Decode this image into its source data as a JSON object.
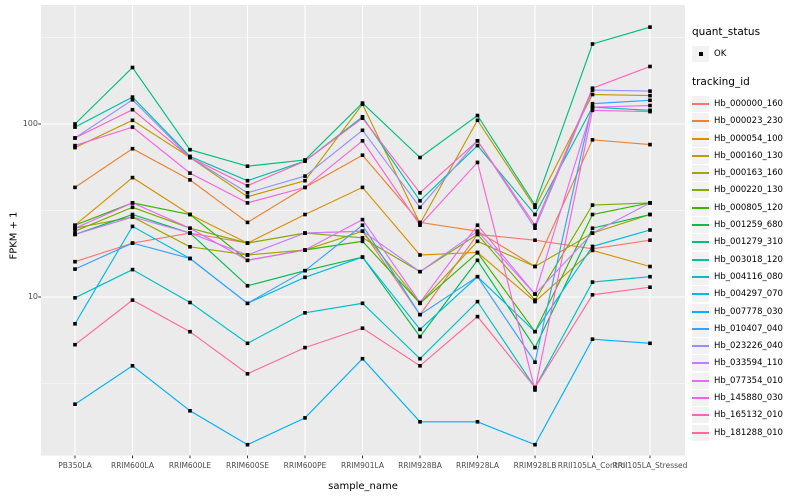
{
  "figure": {
    "background": "#FFFFFF",
    "panel_background": "#EBEBEB",
    "grid_color": "#FFFFFF",
    "tick_color": "#333333",
    "axis_text_color": "#4D4D4D",
    "marker_color": "#000000"
  },
  "y_axis": {
    "title": "FPKM + 1",
    "tick_labels": [
      "100",
      "10"
    ],
    "tick_values": [
      100,
      10
    ]
  },
  "x_axis": {
    "title": "sample_name",
    "categories": [
      "PB350LA",
      "RRIM600LA",
      "RRIM600LE",
      "RRIM600SE",
      "RRIM600PE",
      "RRIM901LA",
      "RRIM928BA",
      "RRIM928LA",
      "RRIM928LB",
      "RRII105LA_Control",
      "RRII105LA_Stressed"
    ]
  },
  "legend": {
    "quant_status": {
      "title": "quant_status",
      "items": [
        {
          "label": "OK",
          "marker": "black-square-point"
        }
      ]
    },
    "tracking_id": {
      "title": "tracking_id"
    }
  },
  "chart_data": {
    "type": "line",
    "title": "",
    "xlabel": "sample_name",
    "ylabel": "FPKM + 1",
    "y_scale": "log10",
    "ylim": [
      1.2,
      480
    ],
    "grid": true,
    "legend_position": "right",
    "marker": {
      "shape": "square",
      "color": "#000000",
      "label": "OK"
    },
    "categories": [
      "PB350LA",
      "RRIM600LA",
      "RRIM600LE",
      "RRIM600SE",
      "RRIM600PE",
      "RRIM901LA",
      "RRIM928BA",
      "RRIM928LA",
      "RRIM928LB",
      "RRII105LA_Control",
      "RRII105LA_Stressed"
    ],
    "series": [
      {
        "name": "Hb_000000_160",
        "color": "#F8766D",
        "values": [
          16,
          20.5,
          23.4,
          20.5,
          23.4,
          24,
          7.9,
          23,
          21.3,
          19,
          21.3
        ]
      },
      {
        "name": "Hb_000023_230",
        "color": "#EA8331",
        "values": [
          43,
          72,
          47.5,
          27,
          43,
          66,
          27,
          24,
          15,
          81,
          76
        ]
      },
      {
        "name": "Hb_000054_100",
        "color": "#D89000",
        "values": [
          26,
          49,
          30,
          20.5,
          30,
          43,
          17.5,
          18.1,
          9.4,
          18.6,
          15
        ]
      },
      {
        "name": "Hb_000160_130",
        "color": "#C09B00",
        "values": [
          73,
          105,
          64,
          38,
          47,
          130,
          26.6,
          105,
          33,
          148,
          146
        ]
      },
      {
        "name": "Hb_000163_160",
        "color": "#A3A500",
        "values": [
          25,
          29,
          19.5,
          17.5,
          18.7,
          24,
          9.2,
          21,
          15,
          23.4,
          30
        ]
      },
      {
        "name": "Hb_000220_130",
        "color": "#7CAE00",
        "values": [
          24,
          33,
          25,
          20.5,
          23.4,
          22,
          14,
          23,
          9.6,
          34,
          35
        ]
      },
      {
        "name": "Hb_000805_120",
        "color": "#39B600",
        "values": [
          26,
          35,
          30,
          16.3,
          18.7,
          21,
          9.2,
          18,
          6.3,
          30,
          35
        ]
      },
      {
        "name": "Hb_001259_680",
        "color": "#00BB4E",
        "values": [
          23,
          30,
          23.4,
          11.6,
          14.2,
          17,
          5.9,
          16.3,
          5.1,
          25,
          30
        ]
      },
      {
        "name": "Hb_001279_310",
        "color": "#00BF7D",
        "values": [
          100,
          212,
          71,
          57,
          62,
          132,
          64,
          112,
          34,
          290,
          363
        ]
      },
      {
        "name": "Hb_003018_120",
        "color": "#00C1A3",
        "values": [
          96,
          143,
          65,
          47,
          61,
          110,
          36,
          75,
          30,
          125,
          120
        ]
      },
      {
        "name": "Hb_004116_080",
        "color": "#00BFC4",
        "values": [
          9.9,
          14.4,
          9.3,
          5.4,
          8.1,
          9.2,
          4.4,
          9.4,
          3.0,
          12.2,
          13.1
        ]
      },
      {
        "name": "Hb_004297_070",
        "color": "#00BAE0",
        "values": [
          7,
          25.6,
          16.7,
          9.2,
          13,
          17,
          6.5,
          13.1,
          6.3,
          19.6,
          24.4
        ]
      },
      {
        "name": "Hb_007778_030",
        "color": "#00B0F6",
        "values": [
          2.4,
          4.0,
          2.2,
          1.4,
          2.0,
          4.4,
          1.9,
          1.9,
          1.4,
          5.7,
          5.4
        ]
      },
      {
        "name": "Hb_010407_040",
        "color": "#35A2FF",
        "values": [
          14.5,
          20.5,
          16.7,
          9.2,
          14.2,
          26,
          7.9,
          13.1,
          4.2,
          131,
          137
        ]
      },
      {
        "name": "Hb_023226_040",
        "color": "#9590FF",
        "values": [
          83,
          138,
          64,
          40,
          50,
          92,
          33,
          80,
          25,
          157,
          155
        ]
      },
      {
        "name": "Hb_033594_110",
        "color": "#C77CFF",
        "values": [
          23,
          29,
          23.4,
          17.5,
          23.4,
          24,
          14,
          24,
          10.4,
          23.4,
          35
        ]
      },
      {
        "name": "Hb_077354_010",
        "color": "#E76BF3",
        "values": [
          25,
          35,
          25,
          16.3,
          18.7,
          28,
          9.3,
          26,
          10.4,
          125,
          128
        ]
      },
      {
        "name": "Hb_145880_030",
        "color": "#FA62DB",
        "values": [
          75,
          96,
          52,
          35,
          43,
          80,
          26,
          60,
          2.9,
          120,
          118
        ]
      },
      {
        "name": "Hb_165132_010",
        "color": "#FF62BC",
        "values": [
          83,
          121,
          64,
          44,
          61,
          108,
          40,
          80,
          26,
          161,
          215
        ]
      },
      {
        "name": "Hb_181288_010",
        "color": "#FF6A98",
        "values": [
          5.3,
          9.6,
          6.3,
          3.6,
          5.1,
          6.6,
          4.0,
          7.7,
          3.0,
          10.3,
          11.4
        ]
      }
    ]
  }
}
